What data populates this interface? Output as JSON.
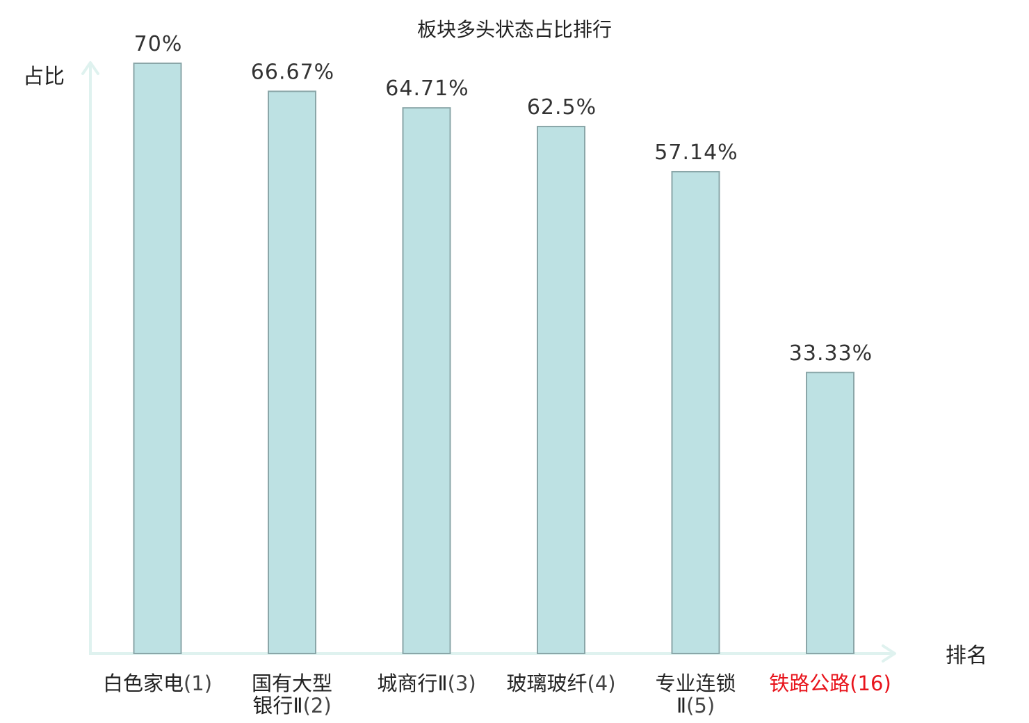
{
  "chart_data": {
    "type": "bar",
    "title": "板块多头状态占比排行",
    "ylabel": "占比",
    "xlabel": "排名",
    "ylim": [
      0,
      70
    ],
    "value_suffix": "%",
    "grid": false,
    "categories": [
      {
        "name_lines": [
          "白色家电"
        ],
        "rank": "(1)",
        "rank_line": 0,
        "highlight": false
      },
      {
        "name_lines": [
          "国有大型",
          "银行Ⅱ"
        ],
        "rank": "(2)",
        "rank_line": 1,
        "highlight": false
      },
      {
        "name_lines": [
          "城商行Ⅱ"
        ],
        "rank": "(3)",
        "rank_line": 0,
        "highlight": false
      },
      {
        "name_lines": [
          "玻璃玻纤"
        ],
        "rank": "(4)",
        "rank_line": 0,
        "highlight": false
      },
      {
        "name_lines": [
          "专业连锁",
          "Ⅱ"
        ],
        "rank": "(5)",
        "rank_line": 1,
        "highlight": false
      },
      {
        "name_lines": [
          "铁路公路"
        ],
        "rank": "(16)",
        "rank_line": 0,
        "highlight": true
      }
    ],
    "values": [
      70,
      66.67,
      64.71,
      62.5,
      57.14,
      33.33
    ],
    "value_labels": [
      "70%",
      "66.67%",
      "64.71%",
      "62.5%",
      "57.14%",
      "33.33%"
    ],
    "colors": {
      "bar_fill": "#bde1e3",
      "bar_stroke": "#8aa6a8",
      "axis": "#dff2ef",
      "highlight": "#e8141c"
    }
  }
}
